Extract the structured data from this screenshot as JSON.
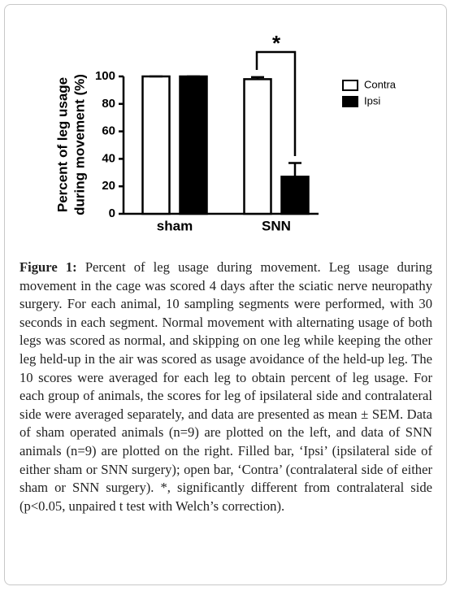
{
  "chart_data": {
    "type": "bar",
    "ylabel": [
      "Percent of leg usage",
      "during movement (%)"
    ],
    "categories": [
      "sham",
      "SNN"
    ],
    "series": [
      {
        "name": "Contra",
        "color": "#ffffff",
        "values": [
          100,
          98
        ],
        "errors": [
          0,
          1.5
        ]
      },
      {
        "name": "Ipsi",
        "color": "#000000",
        "values": [
          100,
          27
        ],
        "errors": [
          0,
          10
        ]
      }
    ],
    "ylim": [
      0,
      100
    ],
    "yticks": [
      0,
      20,
      40,
      60,
      80,
      100
    ],
    "annotation": "*",
    "legend": "right"
  },
  "caption": {
    "label": "Figure 1:",
    "text": "Percent of leg usage during movement. Leg usage during movement in the cage was scored 4 days after the sciatic nerve neuropathy surgery. For each animal, 10 sampling segments were performed, with 30 seconds in each segment. Normal movement with alternating usage of both legs was scored as normal, and skipping on one leg while keeping the other leg held-up in the air was scored as usage avoidance of the held-up leg. The 10 scores were averaged for each leg to obtain percent of leg usage. For each group of animals, the scores for leg of ipsilateral side and contralateral side were averaged separately, and data are presented as mean ± SEM. Data of sham operated animals (n=9) are plotted on the left, and data of SNN animals (n=9) are plotted on the right. Filled bar, ‘Ipsi’ (ipsilateral side of either sham or SNN surgery); open bar, ‘Contra’ (contralateral side of either sham or SNN surgery). *, significantly different from contralateral side (p<0.05, unpaired t test with Welch’s correction)."
  }
}
